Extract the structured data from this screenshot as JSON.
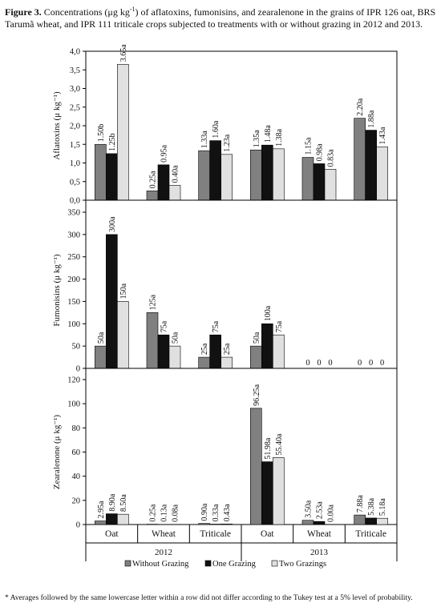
{
  "caption": {
    "label": "Figure 3.",
    "text_before": " Concentrations (μg kg",
    "superscript": "-1",
    "text_after": ") of aflatoxins, fumonisins, and zearalenone in the grains of IPR 126 oat, BRS Tarumã wheat, and IPR 111 triticale crops subjected to treatments with or without grazing in 2012 and 2013."
  },
  "footnote": "* Averages followed by the same lowercase letter within a row did not differ according to the Tukey test at a 5% level of probability.",
  "colors": {
    "without": "#808080",
    "one": "#111111",
    "two": "#e0e0e0"
  },
  "chart_data": {
    "type": "bar",
    "categories": [
      "Oat",
      "Wheat",
      "Triticale",
      "Oat",
      "Wheat",
      "Triticale"
    ],
    "years": [
      {
        "label": "2012",
        "groups": [
          0,
          1,
          2
        ]
      },
      {
        "label": "2013",
        "groups": [
          3,
          4,
          5
        ]
      }
    ],
    "legend": [
      "Without Grazing",
      "One Grazing",
      "Two Grazings"
    ],
    "legend_position": "bottom",
    "panels": [
      {
        "ylabel": "Aflatoxins (μ kg⁻¹)",
        "ylim": [
          0,
          4.0
        ],
        "yticks": [
          0,
          0.5,
          1.0,
          1.5,
          2.0,
          2.5,
          3.0,
          3.5,
          4.0
        ],
        "yticklabels": [
          "0,0",
          "0,5",
          "1,0",
          "1,5",
          "2,0",
          "2,5",
          "3,0",
          "3,5",
          "4,0"
        ],
        "series": [
          {
            "name": "Without Grazing",
            "values": [
              1.5,
              0.25,
              1.33,
              1.35,
              1.15,
              2.2
            ],
            "labels": [
              "1.50b",
              "0.25a",
              "1.33a",
              "1.35a",
              "1.15a",
              "2.20a"
            ]
          },
          {
            "name": "One Grazing",
            "values": [
              1.25,
              0.95,
              1.6,
              1.48,
              0.98,
              1.88
            ],
            "labels": [
              "1.25b",
              "0.95a",
              "1.60a",
              "1.48a",
              "0.98a",
              "1.88a"
            ]
          },
          {
            "name": "Two Grazings",
            "values": [
              3.65,
              0.4,
              1.23,
              1.38,
              0.83,
              1.43
            ],
            "labels": [
              "3.65a",
              "0.40a",
              "1.23a",
              "1.38a",
              "0.83a",
              "1.43a"
            ]
          }
        ]
      },
      {
        "ylabel": "Fumonisins (μ kg⁻¹)",
        "ylim": [
          0,
          350
        ],
        "yticks": [
          0,
          50,
          100,
          150,
          200,
          250,
          300,
          350
        ],
        "yticklabels": [
          "0",
          "50",
          "100",
          "150",
          "200",
          "250",
          "300",
          "350"
        ],
        "series": [
          {
            "name": "Without Grazing",
            "values": [
              50,
              125,
              25,
              50,
              0,
              0
            ],
            "labels": [
              "50a",
              "125a",
              "25a",
              "50a",
              "0",
              "0"
            ]
          },
          {
            "name": "One Grazing",
            "values": [
              300,
              75,
              75,
              100,
              0,
              0
            ],
            "labels": [
              "300a",
              "75a",
              "75a",
              "100a",
              "0",
              "0"
            ]
          },
          {
            "name": "Two Grazings",
            "values": [
              150,
              50,
              25,
              75,
              0,
              0
            ],
            "labels": [
              "150a",
              "50a",
              "25a",
              "75a",
              "0",
              "0"
            ]
          }
        ]
      },
      {
        "ylabel": "Zearalenone (μ kg⁻¹)",
        "ylim": [
          0,
          120
        ],
        "yticks": [
          0,
          20,
          40,
          60,
          80,
          100,
          120
        ],
        "yticklabels": [
          "0",
          "20",
          "40",
          "60",
          "80",
          "100",
          "120"
        ],
        "series": [
          {
            "name": "Without Grazing",
            "values": [
              2.95,
              0.25,
              0.9,
              96.25,
              3.5,
              7.88
            ],
            "labels": [
              "2.95a",
              "0.25a",
              "0.90a",
              "96.25a",
              "3.50a",
              "7.88a"
            ]
          },
          {
            "name": "One Grazing",
            "values": [
              8.9,
              0.13,
              0.33,
              51.98,
              2.53,
              5.38
            ],
            "labels": [
              "8.90a",
              "0.13a",
              "0.33a",
              "51.98a",
              "2.53a",
              "5.38a"
            ]
          },
          {
            "name": "Two Grazings",
            "values": [
              8.5,
              0.08,
              0.43,
              55.4,
              0.0,
              5.18
            ],
            "labels": [
              "8.50a",
              "0.08a",
              "0.43a",
              "55.40a",
              "0.00a",
              "5.18a"
            ]
          }
        ]
      }
    ]
  }
}
